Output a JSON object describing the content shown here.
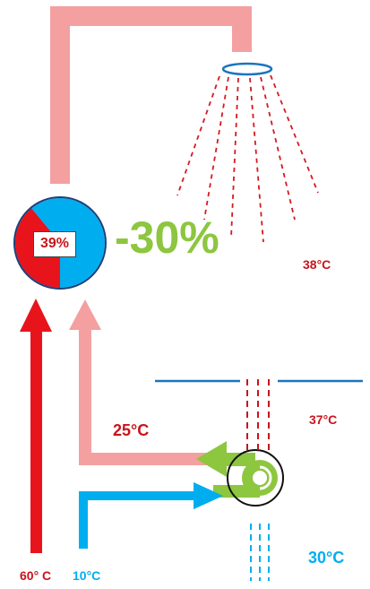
{
  "mixer": {
    "percent_label": "39%",
    "hot_fraction": 0.39
  },
  "savings": {
    "label": "-30%"
  },
  "temperatures": {
    "shower_out": "38°C",
    "drain_in": "37°C",
    "preheated": "25°C",
    "drain_out": "30°C",
    "hot_supply": "60° C",
    "cold_supply": "10°C"
  },
  "colors": {
    "hot": "#e8141c",
    "cold": "#00aeef",
    "warm_pipe": "#f4a0a0",
    "heat_exchanger": "#8dc63f",
    "drain": "#c8151b",
    "drain_out": "#00aeef",
    "shower_head": "#1b75bb",
    "floor": "#1b75bb",
    "savings": "#8dc63f"
  }
}
